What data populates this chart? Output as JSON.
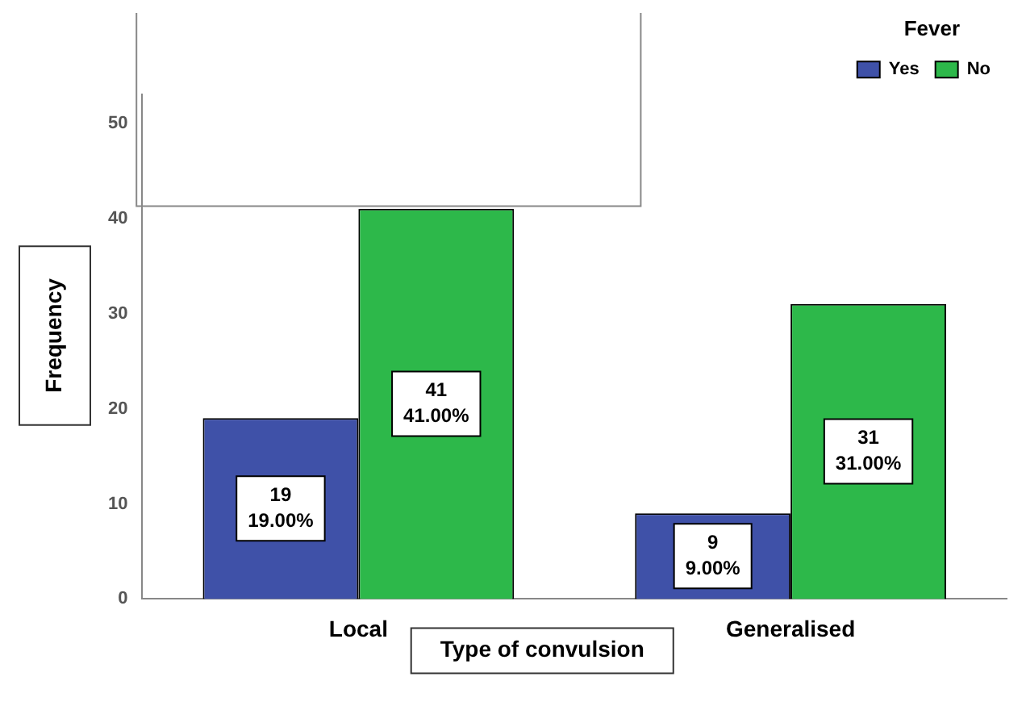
{
  "chart_data": {
    "type": "bar",
    "xlabel": "Type of convulsion",
    "ylabel": "Frequency",
    "legend_title": "Fever",
    "legend": "top right",
    "categories": [
      "Local",
      "Generalised"
    ],
    "series": [
      {
        "name": "Yes",
        "color": "#3f51a8",
        "values": [
          19,
          9
        ],
        "value_labels": [
          "19\n19.00%",
          "9\n9.00%"
        ]
      },
      {
        "name": "No",
        "color": "#2db84a",
        "values": [
          41,
          31
        ],
        "value_labels": [
          "41\n41.00%",
          "31\n31.00%"
        ]
      }
    ],
    "ylim": [
      0,
      53
    ],
    "yticks": [
      0,
      10,
      20,
      30,
      40,
      50
    ],
    "grid": false
  }
}
